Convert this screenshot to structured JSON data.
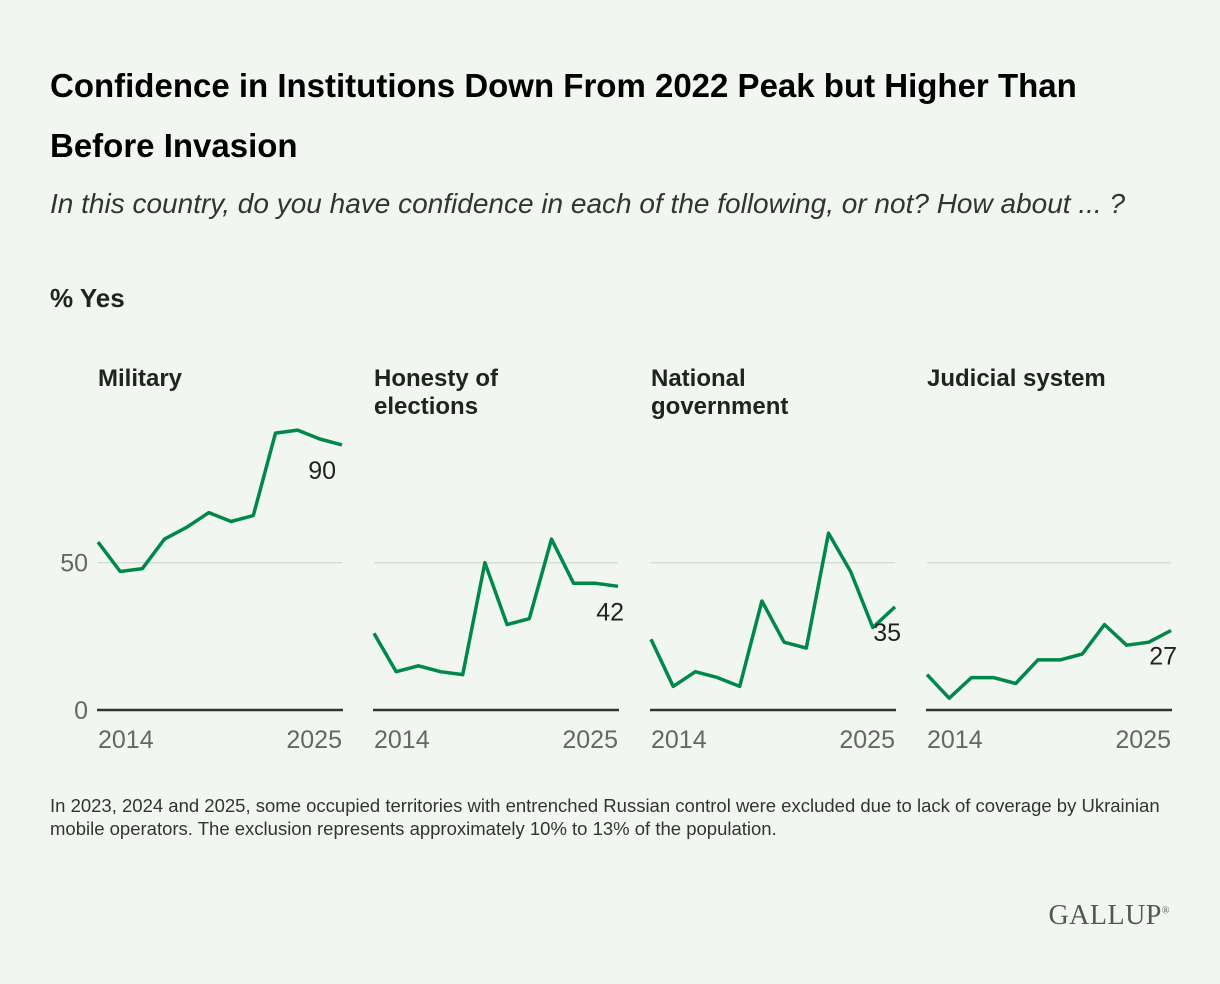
{
  "title": "Confidence in Institutions Down From 2022 Peak but Higher Than Before Invasion",
  "subtitle": "In this country, do you have confidence in each of the following, or not? How about ... ?",
  "unit_label": "% Yes",
  "note": "In 2023, 2024 and 2025, some occupied territories with entrenched Russian control were excluded due to lack of coverage by Ukrainian mobile operators. The exclusion represents approximately 10% to 13% of the population.",
  "logo": "GALLUP",
  "colors": {
    "line": "#00874a",
    "grid": "#d6ddd6",
    "axis": "#333333"
  },
  "chart_data": [
    {
      "type": "line",
      "title": "Military",
      "x": [
        2014,
        2015,
        2016,
        2017,
        2018,
        2019,
        2020,
        2021,
        2022,
        2023,
        2024,
        2025
      ],
      "values": [
        57,
        47,
        48,
        58,
        62,
        67,
        64,
        66,
        94,
        95,
        92,
        90
      ],
      "end_label": "90",
      "xticks": [
        "2014",
        "2025"
      ],
      "yticks": [
        "0",
        "50"
      ],
      "ylim": [
        0,
        100
      ],
      "grid": true
    },
    {
      "type": "line",
      "title": "Honesty of elections",
      "x": [
        2014,
        2015,
        2016,
        2017,
        2018,
        2019,
        2020,
        2021,
        2022,
        2023,
        2024,
        2025
      ],
      "values": [
        26,
        13,
        15,
        13,
        12,
        50,
        29,
        31,
        58,
        43,
        43,
        42
      ],
      "end_label": "42",
      "xticks": [
        "2014",
        "2025"
      ],
      "ylim": [
        0,
        100
      ],
      "grid": true
    },
    {
      "type": "line",
      "title": "National government",
      "x": [
        2014,
        2015,
        2016,
        2017,
        2018,
        2019,
        2020,
        2021,
        2022,
        2023,
        2024,
        2025
      ],
      "values": [
        24,
        8,
        13,
        11,
        8,
        37,
        23,
        21,
        60,
        47,
        28,
        35
      ],
      "end_label": "35",
      "xticks": [
        "2014",
        "2025"
      ],
      "ylim": [
        0,
        100
      ],
      "grid": true
    },
    {
      "type": "line",
      "title": "Judicial system",
      "x": [
        2014,
        2015,
        2016,
        2017,
        2018,
        2019,
        2020,
        2021,
        2022,
        2023,
        2024,
        2025
      ],
      "values": [
        12,
        4,
        11,
        11,
        9,
        17,
        17,
        19,
        29,
        22,
        23,
        27
      ],
      "end_label": "27",
      "xticks": [
        "2014",
        "2025"
      ],
      "ylim": [
        0,
        100
      ],
      "grid": true
    }
  ]
}
